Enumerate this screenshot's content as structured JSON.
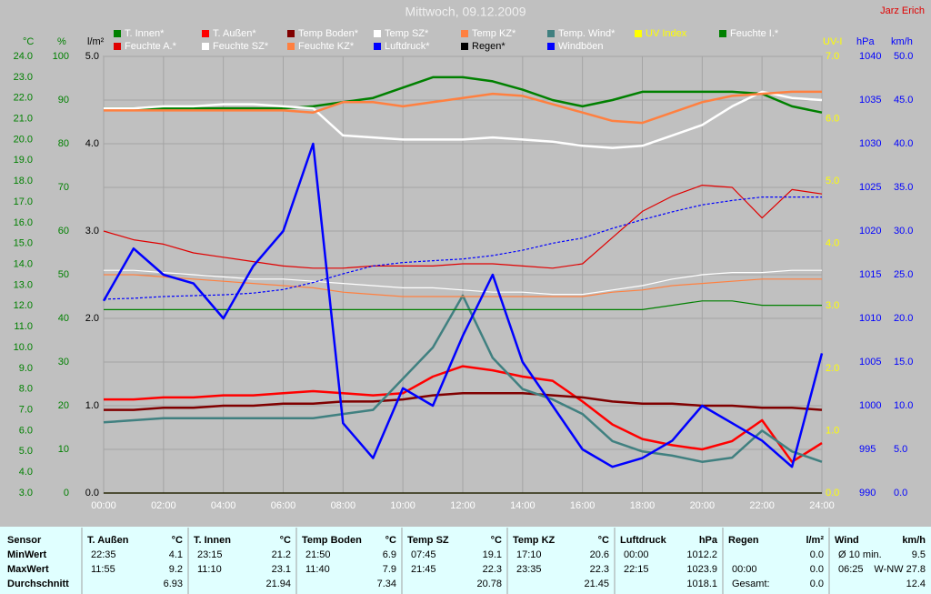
{
  "chart_data": {
    "type": "line",
    "title": "Mittwoch, 09.12.2009",
    "author": "Jarz Erich",
    "x": [
      0,
      1,
      2,
      3,
      4,
      5,
      6,
      7,
      8,
      9,
      10,
      11,
      12,
      13,
      14,
      15,
      16,
      17,
      18,
      19,
      20,
      21,
      22,
      23,
      24
    ],
    "xlim": [
      0,
      24
    ],
    "xticks": [
      {
        "value": 0,
        "label": "00:00"
      },
      {
        "value": 2,
        "label": "02:00"
      },
      {
        "value": 4,
        "label": "04:00"
      },
      {
        "value": 6,
        "label": "06:00"
      },
      {
        "value": 8,
        "label": "08:00"
      },
      {
        "value": 10,
        "label": "10:00"
      },
      {
        "value": 12,
        "label": "12:00"
      },
      {
        "value": 14,
        "label": "14:00"
      },
      {
        "value": 16,
        "label": "16:00"
      },
      {
        "value": 18,
        "label": "18:00"
      },
      {
        "value": 20,
        "label": "20:00"
      },
      {
        "value": 22,
        "label": "22:00"
      },
      {
        "value": 24,
        "label": "24:00"
      }
    ],
    "grid": true,
    "axes": {
      "temp": {
        "label": "°C",
        "color": "#008000",
        "lim": [
          3,
          24
        ],
        "ticks": [
          {
            "value": 3,
            "label": "3.0"
          },
          {
            "value": 4,
            "label": "4.0"
          },
          {
            "value": 5,
            "label": "5.0"
          },
          {
            "value": 6,
            "label": "6.0"
          },
          {
            "value": 7,
            "label": "7.0"
          },
          {
            "value": 8,
            "label": "8.0"
          },
          {
            "value": 9,
            "label": "9.0"
          },
          {
            "value": 10,
            "label": "10.0"
          },
          {
            "value": 11,
            "label": "11.0"
          },
          {
            "value": 12,
            "label": "12.0"
          },
          {
            "value": 13,
            "label": "13.0"
          },
          {
            "value": 14,
            "label": "14.0"
          },
          {
            "value": 15,
            "label": "15.0"
          },
          {
            "value": 16,
            "label": "16.0"
          },
          {
            "value": 17,
            "label": "17.0"
          },
          {
            "value": 18,
            "label": "18.0"
          },
          {
            "value": 19,
            "label": "19.0"
          },
          {
            "value": 20,
            "label": "20.0"
          },
          {
            "value": 21,
            "label": "21.0"
          },
          {
            "value": 22,
            "label": "22.0"
          },
          {
            "value": 23,
            "label": "23.0"
          },
          {
            "value": 24,
            "label": "24.0"
          }
        ]
      },
      "hum": {
        "label": "%",
        "color": "#008000",
        "lim": [
          0,
          100
        ],
        "ticks": [
          0,
          10,
          20,
          30,
          40,
          50,
          60,
          70,
          80,
          90,
          100
        ]
      },
      "rain": {
        "label": "l/m²",
        "color": "#000000",
        "lim": [
          0,
          5
        ],
        "ticks": [
          {
            "value": 0,
            "label": "0.0"
          },
          {
            "value": 1,
            "label": "1.0"
          },
          {
            "value": 2,
            "label": "2.0"
          },
          {
            "value": 3,
            "label": "3.0"
          },
          {
            "value": 4,
            "label": "4.0"
          },
          {
            "value": 5,
            "label": "5.0"
          }
        ]
      },
      "uv": {
        "label": "UV-I",
        "color": "#ffff00",
        "lim": [
          0,
          7
        ],
        "ticks": [
          {
            "value": 0,
            "label": "0.0"
          },
          {
            "value": 1,
            "label": "1.0"
          },
          {
            "value": 2,
            "label": "2.0"
          },
          {
            "value": 3,
            "label": "3.0"
          },
          {
            "value": 4,
            "label": "4.0"
          },
          {
            "value": 5,
            "label": "5.0"
          },
          {
            "value": 6,
            "label": "6.0"
          },
          {
            "value": 7,
            "label": "7.0"
          }
        ]
      },
      "hpa": {
        "label": "hPa",
        "color": "#0000ff",
        "lim": [
          990,
          1040
        ],
        "ticks": [
          990,
          995,
          1000,
          1005,
          1010,
          1015,
          1020,
          1025,
          1030,
          1035,
          1040
        ]
      },
      "wind": {
        "label": "km/h",
        "color": "#0000ff",
        "lim": [
          0,
          50
        ],
        "ticks": [
          {
            "value": 0,
            "label": "0.0"
          },
          {
            "value": 5,
            "label": "5.0"
          },
          {
            "value": 10,
            "label": "10.0"
          },
          {
            "value": 15,
            "label": "15.0"
          },
          {
            "value": 20,
            "label": "20.0"
          },
          {
            "value": 25,
            "label": "25.0"
          },
          {
            "value": 30,
            "label": "30.0"
          },
          {
            "value": 35,
            "label": "35.0"
          },
          {
            "value": 40,
            "label": "40.0"
          },
          {
            "value": 45,
            "label": "45.0"
          },
          {
            "value": 50,
            "label": "50.0"
          }
        ]
      }
    },
    "series": [
      {
        "name": "T. Innen*",
        "color": "#008000",
        "axis": "temp",
        "values": [
          21.5,
          21.5,
          21.5,
          21.5,
          21.5,
          21.5,
          21.5,
          21.6,
          21.8,
          22.0,
          22.5,
          23.0,
          23.0,
          22.8,
          22.4,
          21.9,
          21.6,
          21.9,
          22.3,
          22.3,
          22.3,
          22.3,
          22.2,
          21.6,
          21.3
        ]
      },
      {
        "name": "T. Außen*",
        "color": "#ff0000",
        "axis": "temp",
        "values": [
          7.5,
          7.5,
          7.6,
          7.6,
          7.7,
          7.7,
          7.8,
          7.9,
          7.8,
          7.7,
          7.8,
          8.6,
          9.1,
          8.9,
          8.6,
          8.4,
          7.4,
          6.3,
          5.6,
          5.3,
          5.1,
          5.5,
          6.5,
          4.5,
          5.4
        ]
      },
      {
        "name": "Temp Boden*",
        "color": "#800000",
        "axis": "temp",
        "values": [
          7.0,
          7.0,
          7.1,
          7.1,
          7.2,
          7.2,
          7.3,
          7.3,
          7.4,
          7.4,
          7.5,
          7.7,
          7.8,
          7.8,
          7.8,
          7.7,
          7.6,
          7.4,
          7.3,
          7.3,
          7.2,
          7.2,
          7.1,
          7.1,
          7.0
        ]
      },
      {
        "name": "Temp SZ*",
        "color": "#ffffff",
        "axis": "temp",
        "values": [
          21.5,
          21.5,
          21.6,
          21.6,
          21.7,
          21.7,
          21.6,
          21.5,
          20.2,
          20.1,
          20.0,
          20.0,
          20.0,
          20.1,
          20.0,
          19.9,
          19.7,
          19.6,
          19.7,
          20.2,
          20.7,
          21.6,
          22.3,
          22.0,
          21.9
        ]
      },
      {
        "name": "Temp KZ*",
        "color": "#ff8040",
        "axis": "temp",
        "values": [
          21.4,
          21.4,
          21.4,
          21.4,
          21.4,
          21.4,
          21.4,
          21.3,
          21.8,
          21.8,
          21.6,
          21.8,
          22.0,
          22.2,
          22.1,
          21.7,
          21.3,
          20.9,
          20.8,
          21.3,
          21.8,
          22.1,
          22.2,
          22.3,
          22.3
        ]
      },
      {
        "name": "Temp. Wind*",
        "color": "#408080",
        "axis": "temp",
        "values": [
          6.4,
          6.5,
          6.6,
          6.6,
          6.6,
          6.6,
          6.6,
          6.6,
          6.8,
          7.0,
          8.5,
          10.0,
          12.5,
          9.5,
          8.0,
          7.5,
          6.8,
          5.5,
          5.0,
          4.8,
          4.5,
          4.7,
          6.0,
          5.0,
          4.5
        ]
      },
      {
        "name": "UV Index",
        "color": "#ffff00",
        "axis": "uv",
        "values": [
          0,
          0,
          0,
          0,
          0,
          0,
          0,
          0,
          0,
          0,
          0,
          0,
          0,
          0,
          0,
          0,
          0,
          0,
          0,
          0,
          0,
          0,
          0,
          0,
          0
        ]
      },
      {
        "name": "Feuchte I.*",
        "color": "#008000",
        "axis": "hum",
        "values": [
          42,
          42,
          42,
          42,
          42,
          42,
          42,
          42,
          42,
          42,
          42,
          42,
          42,
          42,
          42,
          42,
          42,
          42,
          42,
          43,
          44,
          44,
          43,
          43,
          43
        ]
      },
      {
        "name": "Feuchte A.*",
        "color": "#e00000",
        "axis": "hum",
        "values": [
          60,
          58,
          57,
          55,
          54,
          53,
          52,
          51.5,
          51.5,
          52,
          52,
          52,
          52.5,
          52.5,
          52,
          51.5,
          52.5,
          58.5,
          64.5,
          68,
          70.5,
          70,
          63,
          69.5,
          68.5
        ]
      },
      {
        "name": "Feuchte SZ*",
        "color": "#ffffff",
        "axis": "hum",
        "values": [
          51,
          51,
          50.5,
          50,
          49.5,
          49,
          49,
          48.5,
          48,
          47.5,
          47,
          47,
          46.5,
          46,
          46,
          45.5,
          45.5,
          46.5,
          47.5,
          49,
          50,
          50.5,
          50.5,
          51,
          51
        ]
      },
      {
        "name": "Feuchte KZ*",
        "color": "#ff8040",
        "axis": "hum",
        "values": [
          50,
          50,
          49.5,
          49,
          48.5,
          48,
          47.5,
          47,
          46,
          45.5,
          45,
          45,
          45,
          45,
          45,
          45,
          45,
          46,
          46.5,
          47.5,
          48,
          48.5,
          49,
          49,
          49
        ]
      },
      {
        "name": "Luftdruck*",
        "color": "#0000ff",
        "axis": "hpa",
        "linestyle": "dashed",
        "values": [
          1012.2,
          1012.3,
          1012.5,
          1012.6,
          1012.7,
          1012.9,
          1013.3,
          1014.1,
          1015.1,
          1016.0,
          1016.4,
          1016.6,
          1016.8,
          1017.2,
          1017.8,
          1018.6,
          1019.2,
          1020.3,
          1021.3,
          1022.2,
          1023.0,
          1023.5,
          1023.9,
          1023.9,
          1023.9
        ]
      },
      {
        "name": "Regen*",
        "color": "#000000",
        "axis": "rain",
        "values": [
          0,
          0,
          0,
          0,
          0,
          0,
          0,
          0,
          0,
          0,
          0,
          0,
          0,
          0,
          0,
          0,
          0,
          0,
          0,
          0,
          0,
          0,
          0,
          0,
          0
        ]
      },
      {
        "name": "Windböen",
        "color": "#0000ff",
        "axis": "wind",
        "values": [
          22,
          28,
          25,
          24,
          20,
          26,
          30,
          40,
          8,
          4,
          12,
          10,
          18,
          25,
          15,
          10,
          5,
          3,
          4,
          6,
          10,
          8,
          6,
          3,
          16
        ]
      }
    ]
  },
  "table": {
    "row_labels": [
      "Sensor",
      "MinWert",
      "MaxWert",
      "Durchschnitt"
    ],
    "columns": [
      {
        "name": "T. Außen",
        "unit": "°C",
        "cells": [
          [
            "22:35",
            "4.1"
          ],
          [
            "11:55",
            "9.2"
          ],
          [
            null,
            "6.93"
          ]
        ]
      },
      {
        "name": "T. Innen",
        "unit": "°C",
        "cells": [
          [
            "23:15",
            "21.2"
          ],
          [
            "11:10",
            "23.1"
          ],
          [
            null,
            "21.94"
          ]
        ]
      },
      {
        "name": "Temp Boden",
        "unit": "°C",
        "cells": [
          [
            "21:50",
            "6.9"
          ],
          [
            "11:40",
            "7.9"
          ],
          [
            null,
            "7.34"
          ]
        ]
      },
      {
        "name": "Temp SZ",
        "unit": "°C",
        "cells": [
          [
            "07:45",
            "19.1"
          ],
          [
            "21:45",
            "22.3"
          ],
          [
            null,
            "20.78"
          ]
        ]
      },
      {
        "name": "Temp KZ",
        "unit": "°C",
        "cells": [
          [
            "17:10",
            "20.6"
          ],
          [
            "23:35",
            "22.3"
          ],
          [
            null,
            "21.45"
          ]
        ]
      },
      {
        "name": "Luftdruck",
        "unit": "hPa",
        "cells": [
          [
            "00:00",
            "1012.2"
          ],
          [
            "22:15",
            "1023.9"
          ],
          [
            null,
            "1018.1"
          ]
        ]
      },
      {
        "name": "Regen",
        "unit": "l/m²",
        "cells": [
          [
            null,
            "0.0"
          ],
          [
            "00:00",
            "0.0"
          ],
          [
            "Gesamt:",
            "0.0"
          ]
        ]
      },
      {
        "name": "Wind",
        "unit": "km/h",
        "cells": [
          [
            "Ø 10 min.",
            "9.5"
          ],
          [
            "06:25",
            "W-NW 27.8"
          ],
          [
            null,
            "12.4"
          ]
        ]
      }
    ]
  }
}
